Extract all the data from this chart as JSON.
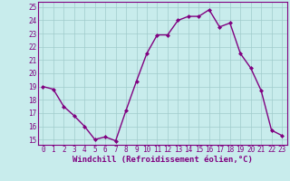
{
  "x": [
    0,
    1,
    2,
    3,
    4,
    5,
    6,
    7,
    8,
    9,
    10,
    11,
    12,
    13,
    14,
    15,
    16,
    17,
    18,
    19,
    20,
    21,
    22,
    23
  ],
  "y": [
    19,
    18.8,
    17.5,
    16.8,
    16.0,
    15.0,
    15.2,
    14.9,
    17.2,
    19.4,
    21.5,
    22.9,
    22.9,
    24.0,
    24.3,
    24.3,
    24.8,
    23.5,
    23.8,
    21.5,
    20.4,
    18.7,
    15.7,
    15.3
  ],
  "line_color": "#800080",
  "marker": "D",
  "marker_size": 2.0,
  "linewidth": 1.0,
  "bg_color": "#c8ecec",
  "grid_color": "#a0cccc",
  "xlabel": "Windchill (Refroidissement éolien,°C)",
  "xlabel_fontsize": 6.5,
  "xlabel_color": "#800080",
  "ylabel_ticks": [
    15,
    16,
    17,
    18,
    19,
    20,
    21,
    22,
    23,
    24,
    25
  ],
  "xticks": [
    0,
    1,
    2,
    3,
    4,
    5,
    6,
    7,
    8,
    9,
    10,
    11,
    12,
    13,
    14,
    15,
    16,
    17,
    18,
    19,
    20,
    21,
    22,
    23
  ],
  "xlim": [
    -0.5,
    23.5
  ],
  "ylim": [
    14.6,
    25.4
  ],
  "tick_fontsize": 5.5,
  "tick_color": "#800080",
  "spine_color": "#800080"
}
